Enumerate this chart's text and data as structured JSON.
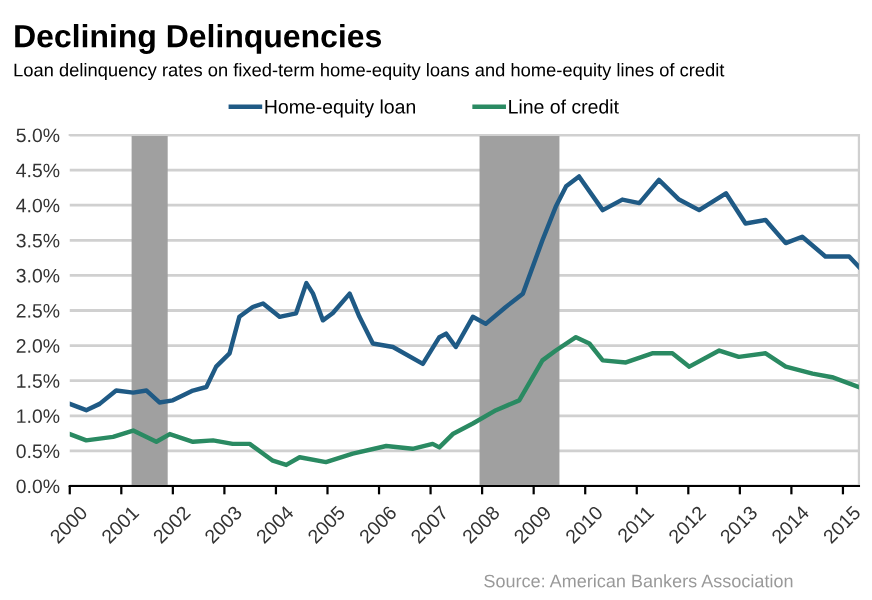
{
  "chart_data": {
    "type": "line",
    "title": "Declining Delinquencies",
    "subtitle": "Loan delinquency rates on fixed-term home-equity loans and home-equity lines of credit",
    "series": [
      {
        "name": "Home-equity loan",
        "color": "#1f5a85",
        "x": [
          2000,
          2000.32,
          2000.58,
          2000.9,
          2001.23,
          2001.49,
          2001.74,
          2002.0,
          2002.39,
          2002.65,
          2002.84,
          2003.1,
          2003.29,
          2003.55,
          2003.75,
          2004.07,
          2004.39,
          2004.59,
          2004.72,
          2004.91,
          2005.1,
          2005.43,
          2005.62,
          2005.88,
          2006.27,
          2006.85,
          2007.17,
          2007.3,
          2007.49,
          2007.82,
          2008.07,
          2008.46,
          2008.79,
          2009.17,
          2009.43,
          2009.63,
          2009.88,
          2010.34,
          2010.72,
          2011.05,
          2011.43,
          2011.82,
          2012.21,
          2012.73,
          2013.11,
          2013.5,
          2013.89,
          2014.21,
          2014.66,
          2015.12,
          2015.31
        ],
        "values": [
          1.17,
          1.08,
          1.17,
          1.36,
          1.33,
          1.36,
          1.19,
          1.22,
          1.36,
          1.41,
          1.7,
          1.89,
          2.41,
          2.55,
          2.6,
          2.41,
          2.46,
          2.89,
          2.74,
          2.36,
          2.46,
          2.74,
          2.41,
          2.03,
          1.98,
          1.74,
          2.12,
          2.17,
          1.98,
          2.41,
          2.31,
          2.55,
          2.74,
          3.5,
          3.98,
          4.27,
          4.41,
          3.93,
          4.08,
          4.03,
          4.36,
          4.08,
          3.93,
          4.17,
          3.74,
          3.79,
          3.46,
          3.55,
          3.27,
          3.27,
          3.12
        ]
      },
      {
        "name": "Line of credit",
        "color": "#2a8a62",
        "x": [
          2000,
          2000.32,
          2000.84,
          2001.23,
          2001.68,
          2001.94,
          2002.39,
          2002.78,
          2003.16,
          2003.49,
          2003.94,
          2004.2,
          2004.46,
          2004.97,
          2005.49,
          2006.14,
          2006.65,
          2007.04,
          2007.17,
          2007.43,
          2007.82,
          2008.27,
          2008.72,
          2009.17,
          2009.43,
          2009.82,
          2010.08,
          2010.34,
          2010.79,
          2011.3,
          2011.69,
          2012.02,
          2012.6,
          2012.98,
          2013.5,
          2013.89,
          2014.41,
          2014.79,
          2015.31
        ],
        "values": [
          0.74,
          0.65,
          0.7,
          0.79,
          0.63,
          0.74,
          0.63,
          0.65,
          0.6,
          0.6,
          0.36,
          0.3,
          0.41,
          0.34,
          0.46,
          0.57,
          0.53,
          0.6,
          0.55,
          0.74,
          0.89,
          1.08,
          1.22,
          1.79,
          1.93,
          2.12,
          2.03,
          1.79,
          1.76,
          1.89,
          1.89,
          1.7,
          1.93,
          1.84,
          1.89,
          1.7,
          1.6,
          1.55,
          1.41
        ]
      }
    ],
    "xlim": [
      2000,
      2015.31
    ],
    "xticks": [
      2000,
      2001,
      2002,
      2003,
      2004,
      2005,
      2006,
      2007,
      2008,
      2009,
      2010,
      2011,
      2012,
      2013,
      2014,
      2015
    ],
    "ylim": [
      0,
      5
    ],
    "yticks": [
      {
        "value": 0,
        "label": "0.0%"
      },
      {
        "value": 0.5,
        "label": "0.5%"
      },
      {
        "value": 1,
        "label": "1.0%"
      },
      {
        "value": 1.5,
        "label": "1.5%"
      },
      {
        "value": 2,
        "label": "2.0%"
      },
      {
        "value": 2.5,
        "label": "2.5%"
      },
      {
        "value": 3,
        "label": "3.0%"
      },
      {
        "value": 3.5,
        "label": "3.5%"
      },
      {
        "value": 4,
        "label": "4.0%"
      },
      {
        "value": 4.5,
        "label": "4.5%"
      },
      {
        "value": 5,
        "label": "5.0%"
      }
    ],
    "bands": [
      {
        "axis": "x",
        "from": 2001.2,
        "to": 2001.9,
        "color": "#a0a0a0"
      },
      {
        "axis": "x",
        "from": 2007.95,
        "to": 2009.5,
        "color": "#a0a0a0"
      }
    ],
    "grid": "y",
    "legend": "top",
    "line_style": "solid",
    "annotations": [
      "Source: American Bankers Association"
    ]
  }
}
